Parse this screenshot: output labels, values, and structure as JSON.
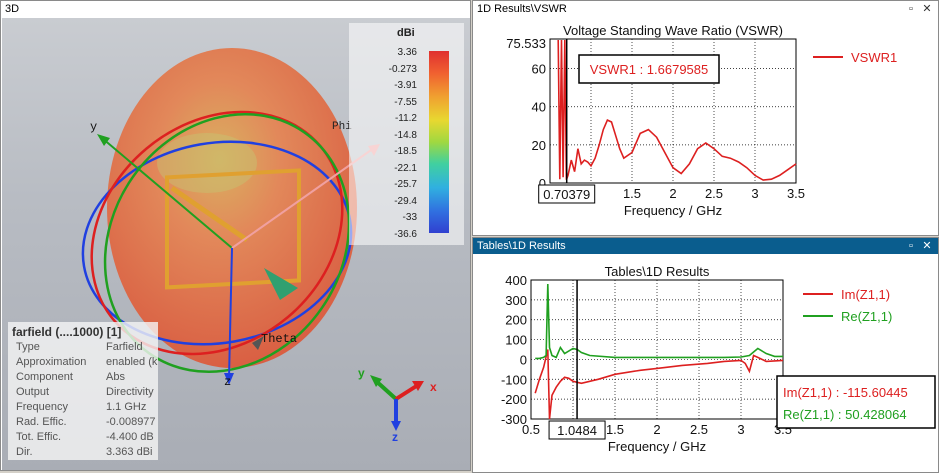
{
  "panes": {
    "view3d": {
      "title": "3D"
    },
    "vswr": {
      "title": "1D Results\\VSWR"
    },
    "tables": {
      "title": "Tables\\1D Results"
    }
  },
  "farfield": {
    "title": "farfield (....1000) [1]",
    "rows": [
      {
        "k": "Type",
        "v": "Farfield"
      },
      {
        "k": "Approximation",
        "v": "enabled (k"
      },
      {
        "k": "Component",
        "v": "Abs"
      },
      {
        "k": "Output",
        "v": "Directivity"
      },
      {
        "k": "Frequency",
        "v": "1.1 GHz"
      },
      {
        "k": "Rad. Effic.",
        "v": "-0.008977"
      },
      {
        "k": "Tot. Effic.",
        "v": "-4.400 dB"
      },
      {
        "k": "Dir.",
        "v": "3.363 dBi"
      }
    ]
  },
  "colorbar": {
    "unit": "dBi",
    "values": [
      "3.36",
      "-0.273",
      "-3.91",
      "-7.55",
      "-11.2",
      "-14.8",
      "-18.5",
      "-22.1",
      "-25.7",
      "-29.4",
      "-33",
      "-36.6"
    ]
  },
  "axes3d": {
    "x": "x",
    "y": "y",
    "z": "z",
    "phi": "Phi",
    "theta": "Theta"
  },
  "colors": {
    "red": "#dd2020",
    "green": "#20a020",
    "blue": "#2040e0",
    "accent": "#0a5d8e"
  },
  "chart_data": [
    {
      "type": "line",
      "title": "Voltage Standing Wave Ratio (VSWR)",
      "xlabel": "Frequency / GHz",
      "ylabel": "",
      "xlim": [
        0.5,
        3.5
      ],
      "ylim": [
        0,
        75.533
      ],
      "xticks": [
        "1",
        "1.5",
        "2",
        "2.5",
        "3",
        "3.5"
      ],
      "yticks": [
        "0",
        "20",
        "40",
        "60"
      ],
      "ymax_label": "75.533",
      "marker_x": 0.70379,
      "marker_label": "0.70379",
      "readout": "VSWR1 : 1.6679585",
      "series": [
        {
          "name": "VSWR1",
          "color": "#dd2020",
          "x": [
            0.6,
            0.62,
            0.64,
            0.66,
            0.68,
            0.7,
            0.72,
            0.76,
            0.8,
            0.84,
            0.88,
            0.92,
            0.96,
            1.0,
            1.05,
            1.1,
            1.15,
            1.2,
            1.25,
            1.3,
            1.35,
            1.4,
            1.5,
            1.6,
            1.7,
            1.8,
            1.9,
            2.0,
            2.1,
            2.2,
            2.3,
            2.4,
            2.5,
            2.6,
            2.7,
            2.8,
            2.9,
            3.0,
            3.1,
            3.2,
            3.3,
            3.4,
            3.5
          ],
          "y": [
            75,
            2,
            75,
            3,
            75,
            1.7,
            4,
            12,
            6,
            18,
            10,
            12,
            11,
            9,
            13,
            20,
            28,
            33,
            32,
            25,
            18,
            13,
            16,
            26,
            28,
            24,
            16,
            8,
            5,
            10,
            18,
            21,
            18,
            14,
            13,
            11,
            8,
            4,
            1.5,
            2,
            4,
            7,
            10
          ]
        }
      ]
    },
    {
      "type": "line",
      "title": "Tables\\1D Results",
      "xlabel": "Frequency / GHz",
      "ylabel": "",
      "xlim": [
        0.5,
        3.5
      ],
      "ylim": [
        -300,
        400
      ],
      "xticks": [
        "0.5",
        "1",
        "1.5",
        "2",
        "2.5",
        "3",
        "3.5"
      ],
      "yticks": [
        "400",
        "300",
        "200",
        "100",
        "0",
        "-100",
        "-200",
        "-300"
      ],
      "marker_x": 1.0484,
      "marker_label": "1.0484",
      "readout": [
        "Im(Z1,1) : -115.60445",
        "Re(Z1,1) : 50.428064"
      ],
      "series": [
        {
          "name": "Im(Z1,1)",
          "color": "#dd2020",
          "x": [
            0.55,
            0.6,
            0.65,
            0.7,
            0.72,
            0.75,
            0.8,
            0.85,
            0.9,
            0.95,
            1.0,
            1.05,
            1.1,
            1.2,
            1.3,
            1.5,
            1.8,
            2.0,
            2.3,
            2.6,
            2.8,
            3.0,
            3.05,
            3.1,
            3.15,
            3.2,
            3.3,
            3.5
          ],
          "y": [
            -170,
            -100,
            -40,
            50,
            -300,
            -180,
            -140,
            -110,
            -90,
            -95,
            -110,
            -115,
            -120,
            -110,
            -100,
            -75,
            -55,
            -45,
            -30,
            -20,
            -10,
            -5,
            -20,
            -60,
            20,
            10,
            -10,
            -5
          ]
        },
        {
          "name": "Re(Z1,1)",
          "color": "#20a020",
          "x": [
            0.55,
            0.6,
            0.65,
            0.68,
            0.7,
            0.72,
            0.75,
            0.8,
            0.85,
            0.9,
            1.0,
            1.05,
            1.1,
            1.2,
            1.5,
            2.0,
            2.5,
            2.8,
            3.0,
            3.1,
            3.2,
            3.3,
            3.4,
            3.5
          ],
          "y": [
            5,
            5,
            10,
            20,
            380,
            60,
            20,
            10,
            60,
            30,
            55,
            50,
            35,
            20,
            10,
            10,
            10,
            10,
            12,
            20,
            55,
            30,
            15,
            15
          ]
        }
      ]
    }
  ]
}
